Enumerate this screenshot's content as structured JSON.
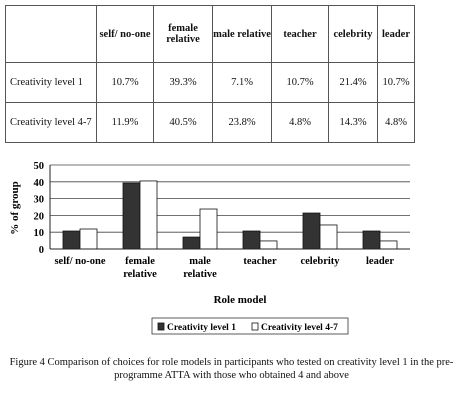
{
  "table": {
    "headers": [
      "self/ no-one",
      "female relative",
      "male relative",
      "teacher",
      "celebrity",
      "leader"
    ],
    "rows": [
      {
        "label": "Creativity level 1",
        "cells": [
          "10.7%",
          "39.3%",
          "7.1%",
          "10.7%",
          "21.4%",
          "10.7%"
        ]
      },
      {
        "label": "Creativity level 4-7",
        "cells": [
          "11.9%",
          "40.5%",
          "23.8%",
          "4.8%",
          "14.3%",
          "4.8%"
        ]
      }
    ]
  },
  "chart_data": {
    "type": "bar",
    "categories": [
      "self/ no-one",
      "female relative",
      "male relative",
      "teacher",
      "celebrity",
      "leader"
    ],
    "series": [
      {
        "name": "Creativity level 1",
        "values": [
          10.7,
          39.3,
          7.1,
          10.7,
          21.4,
          10.7
        ],
        "color": "#333333"
      },
      {
        "name": "Creativity level 4-7",
        "values": [
          11.9,
          40.5,
          23.8,
          4.8,
          14.3,
          4.8
        ],
        "color": "#ffffff"
      }
    ],
    "xlabel": "Role model",
    "ylabel": "% of group",
    "ylim": [
      0,
      50
    ],
    "yticks": [
      0,
      10,
      20,
      30,
      40,
      50
    ],
    "grid": true,
    "legend_position": "bottom"
  },
  "caption": "Figure 4 Comparison of choices for role models in participants who tested on creativity level 1 in the pre-programme ATTA with those who obtained 4 and above"
}
